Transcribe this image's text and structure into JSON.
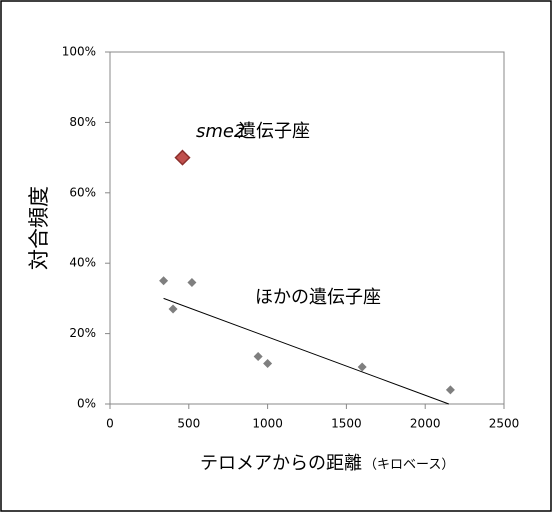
{
  "chart_data": {
    "type": "scatter",
    "ylabel": "対合頻度",
    "xlabel": "テロメアからの距離",
    "xlabel_unit": "（キロベース）",
    "annotations": [
      {
        "text": "sme2",
        "italic": true
      },
      {
        "text": "遺伝子座"
      },
      {
        "text": "ほかの遺伝子座"
      }
    ],
    "series": [
      {
        "color": "#7f7f7f",
        "size": 9,
        "x": [
          340,
          400,
          520,
          940,
          1000,
          1600,
          2160
        ],
        "values": [
          35,
          27,
          34.5,
          13.5,
          11.5,
          10.5,
          4
        ]
      },
      {
        "color": "#c0504d",
        "size": 14,
        "x": [
          460
        ],
        "values": [
          70
        ]
      }
    ],
    "trendline": {
      "x": [
        340,
        2150
      ],
      "values": [
        30,
        0
      ]
    },
    "xlim": [
      0,
      2500
    ],
    "xticks": [
      0,
      500,
      1000,
      1500,
      2000,
      2500
    ],
    "ylim": [
      0,
      100
    ],
    "yticks": [
      {
        "value": 0,
        "label": "0%"
      },
      {
        "value": 20,
        "label": "20%"
      },
      {
        "value": 40,
        "label": "40%"
      },
      {
        "value": 60,
        "label": "60%"
      },
      {
        "value": 80,
        "label": "80%"
      },
      {
        "value": 100,
        "label": "100%"
      }
    ]
  }
}
